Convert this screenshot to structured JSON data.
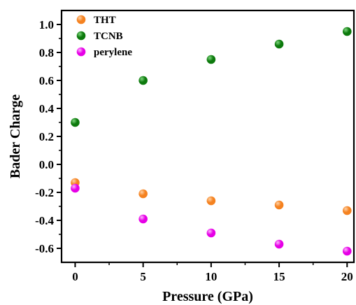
{
  "chart_data": {
    "type": "scatter",
    "xlabel": "Pressure (GPa)",
    "ylabel": "Bader Charge",
    "xlim": [
      -1,
      20.5
    ],
    "ylim": [
      -0.7,
      1.1
    ],
    "x_ticks": [
      0,
      5,
      10,
      15,
      20
    ],
    "x_tick_labels": [
      "0",
      "5",
      "10",
      "15",
      "20"
    ],
    "y_ticks": [
      -0.6,
      -0.4,
      -0.2,
      0.0,
      0.2,
      0.4,
      0.6,
      0.8,
      1.0
    ],
    "y_tick_labels": [
      "-0.6",
      "-0.4",
      "-0.2",
      "0.0",
      "0.2",
      "0.4",
      "0.6",
      "0.8",
      "1.0"
    ],
    "grid": false,
    "legend": "top-left",
    "series": [
      {
        "name": "THT",
        "color": "#f58220",
        "highlight": "#ffd2a6",
        "x": [
          0,
          5,
          10,
          15,
          20
        ],
        "y": [
          -0.13,
          -0.21,
          -0.26,
          -0.29,
          -0.33
        ]
      },
      {
        "name": "TCNB",
        "color": "#0d7a0d",
        "highlight": "#7ed67e",
        "x": [
          0,
          5,
          10,
          15,
          20
        ],
        "y": [
          0.3,
          0.6,
          0.75,
          0.86,
          0.95
        ]
      },
      {
        "name": "perylene",
        "color": "#e600e6",
        "highlight": "#ffb3ff",
        "x": [
          0,
          5,
          10,
          15,
          20
        ],
        "y": [
          -0.17,
          -0.39,
          -0.49,
          -0.57,
          -0.62
        ]
      }
    ]
  }
}
